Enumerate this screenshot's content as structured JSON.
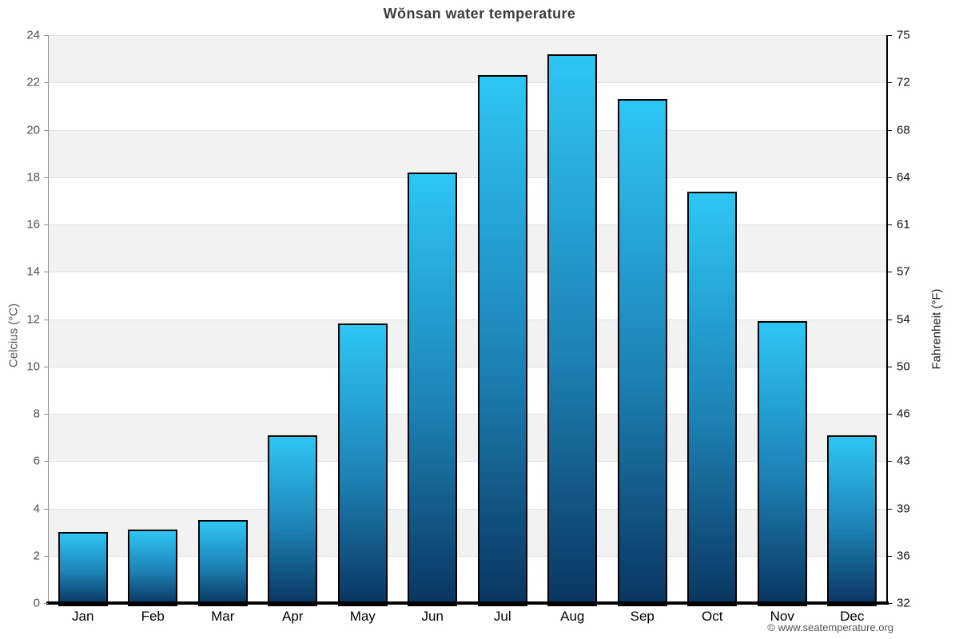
{
  "page": {
    "credit": "© www.seatemperature.org"
  },
  "chart_data": {
    "type": "bar",
    "title": "Wŏnsan water temperature",
    "xlabel": "",
    "ylabel_left": "Celcius (°C)",
    "ylabel_right": "Fahrenheit (°F)",
    "categories": [
      "Jan",
      "Feb",
      "Mar",
      "Apr",
      "May",
      "Jun",
      "Jul",
      "Aug",
      "Sep",
      "Oct",
      "Nov",
      "Dec"
    ],
    "values_celsius": [
      3.0,
      3.1,
      3.5,
      7.1,
      11.8,
      18.2,
      22.3,
      23.2,
      21.3,
      17.4,
      11.9,
      7.1
    ],
    "ylim_celsius": [
      0,
      24
    ],
    "yticks_celsius": [
      24,
      22,
      20,
      18,
      16,
      14,
      12,
      10,
      8,
      6,
      4,
      2,
      0
    ],
    "yticks_fahrenheit": [
      75,
      72,
      68,
      64,
      61,
      57,
      54,
      50,
      46,
      43,
      39,
      36,
      32
    ],
    "grid": true,
    "legend": "none",
    "band_color": "#f2f2f2",
    "gridline_color": "#e0e0e0",
    "bar_color_top": "#2ec6f4",
    "bar_color_bottom": "#0a3560",
    "bar_border_color": "#000000",
    "title_color": "#3c3c3c"
  }
}
